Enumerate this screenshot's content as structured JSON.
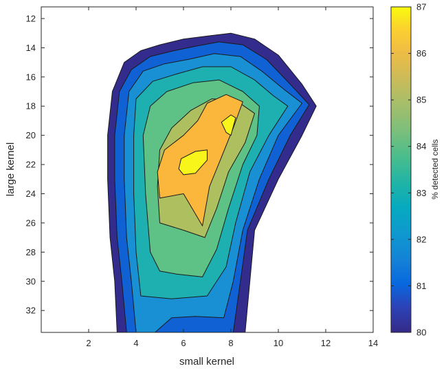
{
  "chart_data": {
    "type": "contour",
    "title": "",
    "xlabel": "small kernel",
    "ylabel": "large kernel",
    "xlim": [
      0,
      14
    ],
    "ylim": [
      33.5,
      11.2
    ],
    "y_direction": "reversed",
    "x_ticks": [
      "2",
      "4",
      "6",
      "8",
      "10",
      "12",
      "14"
    ],
    "y_ticks": [
      "12",
      "14",
      "16",
      "18",
      "20",
      "22",
      "24",
      "26",
      "28",
      "30",
      "32"
    ],
    "colorbar": {
      "label": "% detected cells",
      "range": [
        80,
        87
      ],
      "ticks": [
        "80",
        "81",
        "82",
        "83",
        "84",
        "85",
        "86",
        "87"
      ],
      "colormap": "parula",
      "position": "right"
    },
    "levels": [
      80.5,
      81,
      82,
      83,
      84,
      85,
      86,
      86.5
    ],
    "level_colors": [
      "#332c8c",
      "#1061d4",
      "#1a90d4",
      "#1eb0b0",
      "#5ec185",
      "#aebf5f",
      "#fbb63c",
      "#f7f51a"
    ],
    "regions": [
      {
        "level": 80.5,
        "points": [
          [
            3.2,
            33.5
          ],
          [
            3.1,
            30
          ],
          [
            2.9,
            27
          ],
          [
            2.8,
            23
          ],
          [
            2.8,
            20
          ],
          [
            3.0,
            17
          ],
          [
            3.5,
            15
          ],
          [
            4.2,
            14.2
          ],
          [
            5.0,
            13.8
          ],
          [
            6.0,
            13.4
          ],
          [
            7.0,
            13.2
          ],
          [
            8.0,
            13.0
          ],
          [
            9.0,
            13.4
          ],
          [
            10.0,
            14.5
          ],
          [
            11.0,
            16.5
          ],
          [
            11.6,
            18.0
          ],
          [
            11.0,
            20.0
          ],
          [
            10.0,
            23.0
          ],
          [
            9.0,
            26.5
          ],
          [
            8.8,
            30
          ],
          [
            8.6,
            33.5
          ]
        ]
      },
      {
        "level": 81,
        "points": [
          [
            3.6,
            33.5
          ],
          [
            3.4,
            30
          ],
          [
            3.2,
            27
          ],
          [
            3.1,
            23
          ],
          [
            3.1,
            20
          ],
          [
            3.3,
            17
          ],
          [
            3.8,
            15.5
          ],
          [
            4.6,
            14.6
          ],
          [
            5.6,
            14.2
          ],
          [
            6.5,
            13.9
          ],
          [
            7.5,
            13.6
          ],
          [
            8.5,
            13.8
          ],
          [
            9.5,
            14.8
          ],
          [
            10.5,
            16.5
          ],
          [
            11.3,
            17.9
          ],
          [
            10.5,
            20.0
          ],
          [
            9.6,
            23.0
          ],
          [
            8.7,
            26.5
          ],
          [
            8.4,
            30
          ],
          [
            8.1,
            33.5
          ]
        ]
      },
      {
        "level": 82,
        "points": [
          [
            4.0,
            33.5
          ],
          [
            3.8,
            30
          ],
          [
            3.6,
            27
          ],
          [
            3.5,
            23
          ],
          [
            3.5,
            20
          ],
          [
            3.7,
            17
          ],
          [
            4.3,
            15.6
          ],
          [
            5.2,
            15.1
          ],
          [
            6.2,
            14.8
          ],
          [
            7.3,
            14.4
          ],
          [
            8.4,
            14.6
          ],
          [
            9.3,
            15.6
          ],
          [
            10.2,
            16.8
          ],
          [
            11.0,
            17.8
          ],
          [
            10.0,
            20.0
          ],
          [
            9.2,
            23.0
          ],
          [
            8.5,
            26.5
          ],
          [
            8.1,
            30
          ],
          [
            7.7,
            32.5
          ],
          [
            6.5,
            32.4
          ],
          [
            5.5,
            32.5
          ],
          [
            4.8,
            33.5
          ]
        ]
      },
      {
        "level": 83,
        "points": [
          [
            4.2,
            31
          ],
          [
            4.0,
            28
          ],
          [
            3.9,
            24
          ],
          [
            3.9,
            20
          ],
          [
            4.0,
            17.5
          ],
          [
            4.7,
            16.3
          ],
          [
            5.7,
            15.8
          ],
          [
            6.8,
            15.3
          ],
          [
            8.0,
            15.3
          ],
          [
            9.0,
            16.2
          ],
          [
            9.8,
            17.3
          ],
          [
            10.4,
            18.0
          ],
          [
            9.6,
            20.0
          ],
          [
            8.8,
            22.5
          ],
          [
            8.2,
            26
          ],
          [
            7.8,
            29
          ],
          [
            7.0,
            31
          ],
          [
            5.5,
            31.2
          ]
        ]
      },
      {
        "level": 84,
        "points": [
          [
            4.6,
            28
          ],
          [
            4.4,
            24
          ],
          [
            4.3,
            20
          ],
          [
            4.6,
            18
          ],
          [
            5.3,
            17
          ],
          [
            6.4,
            16.4
          ],
          [
            7.5,
            16.2
          ],
          [
            8.5,
            17.0
          ],
          [
            9.2,
            18.0
          ],
          [
            9.1,
            20.0
          ],
          [
            8.5,
            22.0
          ],
          [
            7.9,
            25.0
          ],
          [
            7.4,
            27.8
          ],
          [
            6.8,
            29.7
          ],
          [
            5.7,
            29.5
          ],
          [
            5.0,
            29.3
          ]
        ]
      },
      {
        "level": 85,
        "points": [
          [
            5.0,
            26
          ],
          [
            4.9,
            23.5
          ],
          [
            5.0,
            21
          ],
          [
            5.5,
            19.5
          ],
          [
            6.3,
            18.3
          ],
          [
            7.2,
            17.5
          ],
          [
            8.2,
            17.6
          ],
          [
            9.0,
            18.5
          ],
          [
            8.6,
            20.5
          ],
          [
            7.9,
            22.5
          ],
          [
            7.4,
            25
          ],
          [
            6.9,
            27
          ],
          [
            6.0,
            26.5
          ]
        ]
      },
      {
        "level": 86,
        "points": [
          [
            5.0,
            24.3
          ],
          [
            4.9,
            22.5
          ],
          [
            5.2,
            21
          ],
          [
            6.0,
            20
          ],
          [
            6.6,
            19
          ],
          [
            7.0,
            17.8
          ],
          [
            7.8,
            17.2
          ],
          [
            8.5,
            17.7
          ],
          [
            8.1,
            19.5
          ],
          [
            7.6,
            21.5
          ],
          [
            7.1,
            23.5
          ],
          [
            6.8,
            26.2
          ],
          [
            6.0,
            24.0
          ]
        ]
      },
      {
        "level": 86.5,
        "points": [
          [
            5.8,
            22.3
          ],
          [
            5.9,
            21.6
          ],
          [
            6.5,
            21.1
          ],
          [
            7.0,
            21.0
          ],
          [
            7.0,
            21.7
          ],
          [
            6.5,
            22.6
          ],
          [
            6.0,
            22.7
          ]
        ]
      },
      {
        "level": 86.5,
        "points": [
          [
            7.6,
            19.1
          ],
          [
            8.0,
            18.6
          ],
          [
            8.2,
            18.8
          ],
          [
            8.0,
            20.0
          ],
          [
            7.8,
            19.8
          ]
        ]
      }
    ]
  }
}
